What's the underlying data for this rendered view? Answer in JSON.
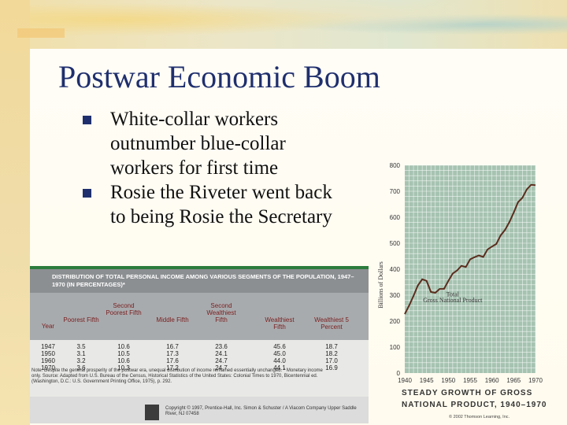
{
  "slide": {
    "title": "Postwar Economic Boom",
    "bullets": [
      "White-collar workers outnumber blue-collar workers for first time",
      "Rosie the Riveter went back to being Rosie the Secretary"
    ]
  },
  "table": {
    "heading": "Distribution of Total Personal Income Among Various Segments of the Population, 1947–1970 (in Percentages)*",
    "columns": [
      "Year",
      "Poorest Fifth",
      "Second Poorest Fifth",
      "Middle Fifth",
      "Second Wealthiest Fifth",
      "Wealthiest Fifth",
      "Wealthiest 5 Percent"
    ],
    "rows": [
      [
        "1947",
        "3.5",
        "10.6",
        "16.7",
        "23.6",
        "45.6",
        "18.7"
      ],
      [
        "1950",
        "3.1",
        "10.5",
        "17.3",
        "24.1",
        "45.0",
        "18.2"
      ],
      [
        "1960",
        "3.2",
        "10.6",
        "17.6",
        "24.7",
        "44.0",
        "17.0"
      ],
      [
        "1970",
        "3.6",
        "10.3",
        "17.2",
        "24.7",
        "44.1",
        "16.9"
      ]
    ],
    "note": "Note: Despite the general prosperity of the postwar era, unequal distribution of income remained essentially unchanged. * Monetary income only. Source: Adapted from U.S. Bureau of the Census, Historical Statistics of the United States: Colonial Times to 1970, Bicentennial ed. (Washington, D.C.: U.S. Government Printing Office, 1975), p. 292.",
    "credit": "Copyright © 1997, Prentice-Hall, Inc. Simon & Schuster / A Viacom Company Upper Saddle River, NJ 07458"
  },
  "chart_data": {
    "type": "line",
    "title": "Steady Growth of Gross National Product, 1940–1970",
    "ylabel": "Billions of Dollars",
    "xlabel": "",
    "annotation": "Total Gross National Product",
    "ylim": [
      0,
      800
    ],
    "xlim": [
      1940,
      1970
    ],
    "xticks": [
      "1940",
      "1945",
      "1950",
      "1955",
      "1960",
      "1965",
      "1970"
    ],
    "yticks": [
      "0",
      "100",
      "200",
      "300",
      "400",
      "500",
      "600",
      "700",
      "800"
    ],
    "series": [
      {
        "name": "",
        "x": [
          1940,
          1941,
          1942,
          1943,
          1944,
          1945,
          1946,
          1947,
          1948,
          1949,
          1950,
          1951,
          1952,
          1953,
          1954,
          1955,
          1956,
          1957,
          1958,
          1959,
          1960,
          1961,
          1962,
          1963,
          1964,
          1965,
          1966,
          1967,
          1968,
          1969,
          1970
        ],
        "values": [
          227,
          260,
          297,
          337,
          361,
          355,
          312,
          309,
          324,
          324,
          355,
          383,
          395,
          413,
          408,
          438,
          446,
          453,
          447,
          476,
          487,
          497,
          530,
          551,
          581,
          618,
          658,
          675,
          707,
          725,
          723
        ]
      }
    ],
    "copyright": "© 2002 Thomson Learning, Inc.",
    "colors": {
      "line": "#5b2d1e",
      "bg": "#a6c3b1",
      "grid": "#ffffff"
    }
  }
}
